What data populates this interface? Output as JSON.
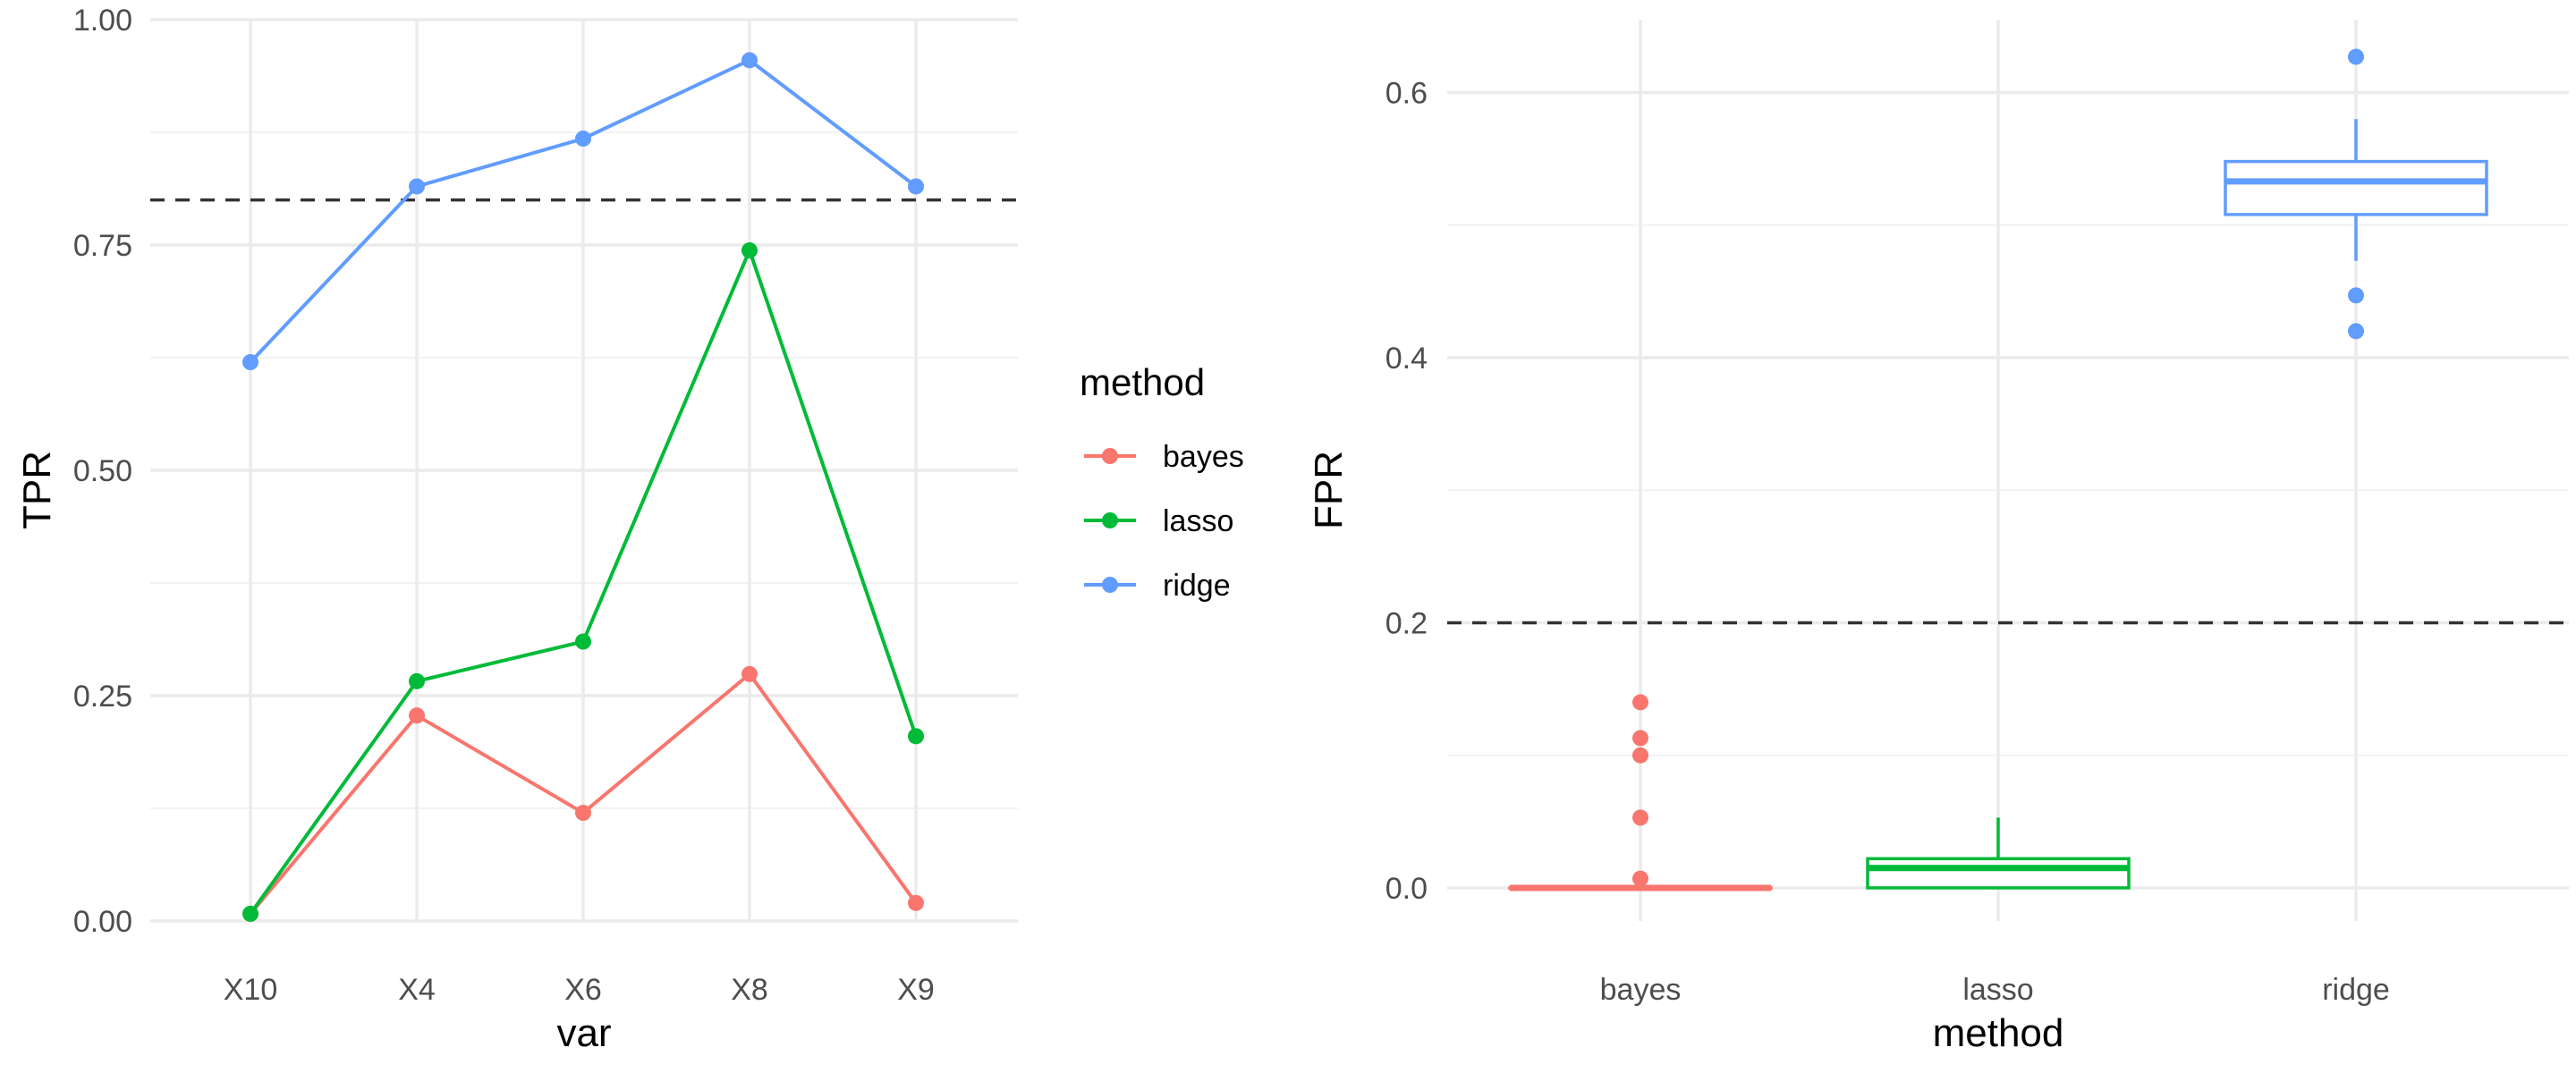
{
  "chart_data": [
    {
      "type": "line",
      "xlabel": "var",
      "ylabel": "TPR",
      "categories": [
        "X10",
        "X4",
        "X6",
        "X8",
        "X9"
      ],
      "ylim": [
        0,
        1
      ],
      "y_ticks": [
        "0.00",
        "0.25",
        "0.50",
        "0.75",
        "1.00"
      ],
      "y_tick_values": [
        0,
        0.25,
        0.5,
        0.75,
        1.0
      ],
      "reference_line": {
        "y": 0.8,
        "style": "dashed"
      },
      "grid": true,
      "series": [
        {
          "name": "bayes",
          "color": "#F8766D",
          "values": [
            0.008,
            0.228,
            0.12,
            0.274,
            0.02
          ]
        },
        {
          "name": "lasso",
          "color": "#00BA38",
          "values": [
            0.008,
            0.266,
            0.31,
            0.744,
            0.205
          ]
        },
        {
          "name": "ridge",
          "color": "#619CFF",
          "values": [
            0.62,
            0.815,
            0.868,
            0.955,
            0.815
          ]
        }
      ],
      "legend": {
        "title": "method",
        "position": "right",
        "items": [
          "bayes",
          "lasso",
          "ridge"
        ]
      }
    },
    {
      "type": "box",
      "xlabel": "method",
      "ylabel": "FPR",
      "categories": [
        "bayes",
        "lasso",
        "ridge"
      ],
      "ylim": [
        -0.025,
        0.655
      ],
      "y_ticks": [
        "0.0",
        "0.2",
        "0.4",
        "0.6"
      ],
      "y_tick_values": [
        0,
        0.2,
        0.4,
        0.6
      ],
      "reference_line": {
        "y": 0.2,
        "style": "dashed"
      },
      "grid": true,
      "boxes": [
        {
          "name": "bayes",
          "color": "#F8766D",
          "q1": 0.0,
          "median": 0.0,
          "q3": 0.0,
          "whisker_low": 0.0,
          "whisker_high": 0.0,
          "outliers": [
            0.14,
            0.113,
            0.1,
            0.053,
            0.007
          ]
        },
        {
          "name": "lasso",
          "color": "#00BA38",
          "q1": 0.0,
          "median": 0.015,
          "q3": 0.022,
          "whisker_low": 0.0,
          "whisker_high": 0.053,
          "outliers": []
        },
        {
          "name": "ridge",
          "color": "#619CFF",
          "q1": 0.508,
          "median": 0.533,
          "q3": 0.548,
          "whisker_low": 0.473,
          "whisker_high": 0.58,
          "outliers": [
            0.627,
            0.447,
            0.42
          ]
        }
      ]
    }
  ]
}
